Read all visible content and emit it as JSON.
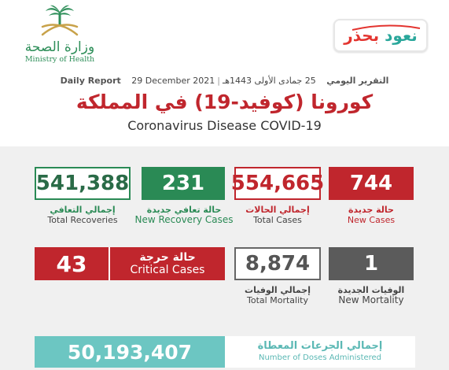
{
  "header": {
    "ministry_ar": "وزارة الصحة",
    "ministry_en": "Ministry of Health",
    "campaign_part1": "نعود",
    "campaign_part2": "بحذر",
    "report_ar": "التقرير اليومي",
    "hijri_date": "25 جمادى الأولى 1443هـ",
    "gregorian_date": "29 December 2021",
    "report_en": "Daily Report",
    "title_ar": "كورونا (كوفيد-19) في المملكة",
    "title_en": "Coronavirus Disease COVID-19"
  },
  "stats": {
    "new_cases": {
      "value": "744",
      "ar": "حالة جديدة",
      "en": "New Cases"
    },
    "total_cases": {
      "value": "554,665",
      "ar": "إجمالي الحالات",
      "en": "Total Cases"
    },
    "new_recovery": {
      "value": "231",
      "ar": "حالة تعافي جديدة",
      "en": "New Recovery Cases"
    },
    "total_recoveries": {
      "value": "541,388",
      "ar": "إجمالي التعافي",
      "en": "Total Recoveries"
    },
    "new_mortality": {
      "value": "1",
      "ar": "الوفيات الجديدة",
      "en": "New Mortality"
    },
    "total_mortality": {
      "value": "8,874",
      "ar": "إجمالي الوفيات",
      "en": "Total Mortality"
    },
    "critical": {
      "value": "43",
      "ar": "حالة حرجة",
      "en": "Critical Cases"
    },
    "doses": {
      "value": "50,193,407",
      "ar": "إجمالي الجرعات المعطاة",
      "en": "Number of Doses Administered"
    }
  },
  "colors": {
    "red": "#c0262d",
    "green": "#2a8a55",
    "grey": "#5b5b5b",
    "teal": "#6cc6c2"
  }
}
